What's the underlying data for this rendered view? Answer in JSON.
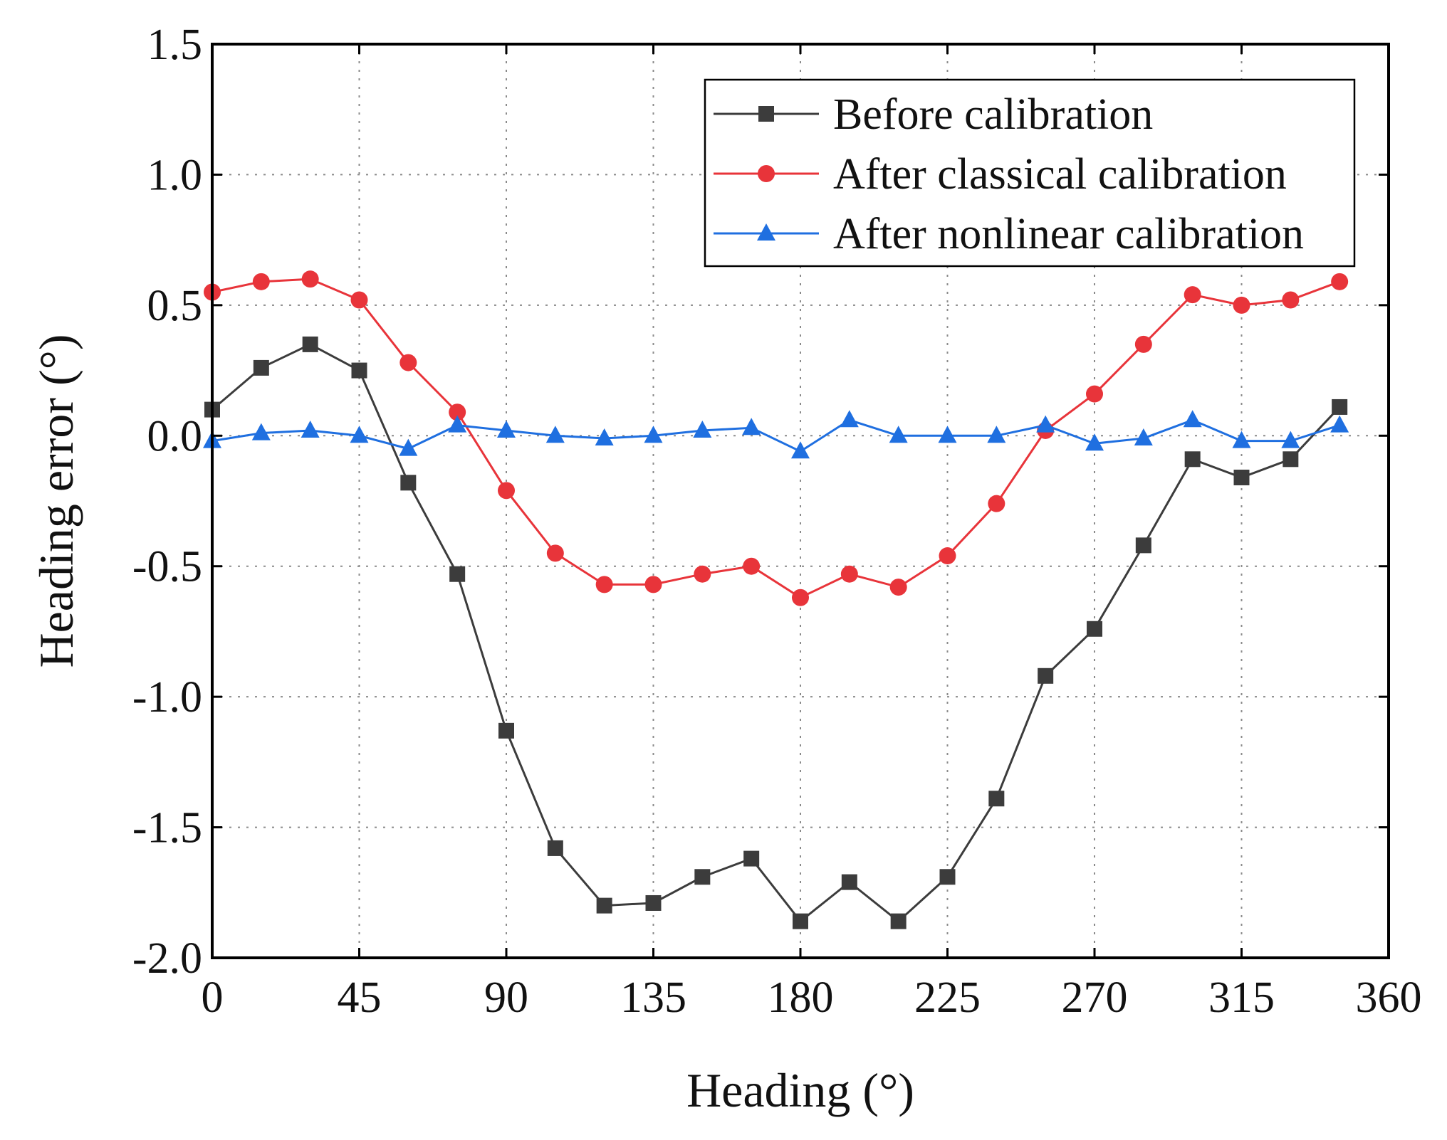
{
  "chart_data": {
    "type": "line",
    "title": "",
    "xlabel": "Heading (°)",
    "ylabel": "Heading error (°)",
    "xlim": [
      0,
      360
    ],
    "ylim": [
      -2.0,
      1.5
    ],
    "xticks": [
      0,
      45,
      90,
      135,
      180,
      225,
      270,
      315,
      360
    ],
    "xtick_labels": [
      "0",
      "45",
      "90",
      "135",
      "180",
      "225",
      "270",
      "315",
      "360"
    ],
    "yticks": [
      1.5,
      1.0,
      0.5,
      0.0,
      -0.5,
      -1.0,
      -1.5,
      -2.0
    ],
    "ytick_labels": [
      "1.5",
      "1.0",
      "0.5",
      "0.0",
      "-0.5",
      "-1.0",
      "-1.5",
      "-2.0"
    ],
    "grid": true,
    "legend_position": "top-right",
    "x": [
      0,
      15,
      30,
      45,
      60,
      75,
      90,
      105,
      120,
      135,
      150,
      165,
      180,
      195,
      210,
      225,
      240,
      255,
      270,
      285,
      300,
      315,
      330,
      345
    ],
    "series": [
      {
        "name": "Before calibration",
        "color": "#3c3c3c",
        "marker": "square",
        "values": [
          0.1,
          0.26,
          0.35,
          0.25,
          -0.18,
          -0.53,
          -1.13,
          -1.58,
          -1.8,
          -1.79,
          -1.69,
          -1.62,
          -1.86,
          -1.71,
          -1.86,
          -1.69,
          -1.39,
          -0.92,
          -0.74,
          -0.42,
          -0.09,
          -0.16,
          -0.09,
          0.11
        ]
      },
      {
        "name": "After classical calibration",
        "color": "#e8343a",
        "marker": "circle",
        "values": [
          0.55,
          0.59,
          0.6,
          0.52,
          0.28,
          0.09,
          -0.21,
          -0.45,
          -0.57,
          -0.57,
          -0.53,
          -0.5,
          -0.62,
          -0.53,
          -0.58,
          -0.46,
          -0.26,
          0.02,
          0.16,
          0.35,
          0.54,
          0.5,
          0.52,
          0.59
        ]
      },
      {
        "name": "After nonlinear calibration",
        "color": "#1f6fe0",
        "marker": "triangle",
        "values": [
          -0.02,
          0.01,
          0.02,
          0.0,
          -0.05,
          0.04,
          0.02,
          0.0,
          -0.01,
          0.0,
          0.02,
          0.03,
          -0.06,
          0.06,
          0.0,
          0.0,
          0.0,
          0.04,
          -0.03,
          -0.01,
          0.06,
          -0.02,
          -0.02,
          0.04
        ]
      }
    ]
  }
}
